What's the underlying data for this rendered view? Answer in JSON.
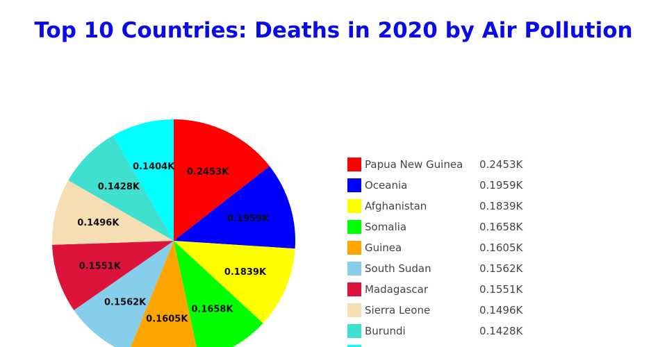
{
  "chart_data": {
    "type": "pie",
    "title": "Top 10 Countries: Deaths in 2020 by Air Pollution",
    "title_color": "#0a0ae6",
    "slices": [
      {
        "label": "Papua New Guinea",
        "value": 245.3,
        "display": "0.2453K",
        "color": "#ff0000"
      },
      {
        "label": "Oceania",
        "value": 195.9,
        "display": "0.1959K",
        "color": "#0000ff"
      },
      {
        "label": "Afghanistan",
        "value": 183.9,
        "display": "0.1839K",
        "color": "#ffff00"
      },
      {
        "label": "Somalia",
        "value": 165.8,
        "display": "0.1658K",
        "color": "#00ff00"
      },
      {
        "label": "Guinea",
        "value": 160.5,
        "display": "0.1605K",
        "color": "#ffa500"
      },
      {
        "label": "South Sudan",
        "value": 156.2,
        "display": "0.1562K",
        "color": "#87ceeb"
      },
      {
        "label": "Madagascar",
        "value": 155.1,
        "display": "0.1551K",
        "color": "#dc143c"
      },
      {
        "label": "Sierra Leone",
        "value": 149.6,
        "display": "0.1496K",
        "color": "#f5deb3"
      },
      {
        "label": "Burundi",
        "value": 142.8,
        "display": "0.1428K",
        "color": "#40e0d0"
      },
      {
        "label": "",
        "value": 140.4,
        "display": "0.1404K",
        "color": "#00ffff"
      }
    ],
    "legend_position": "right",
    "start": "12 o'clock, clockwise"
  }
}
